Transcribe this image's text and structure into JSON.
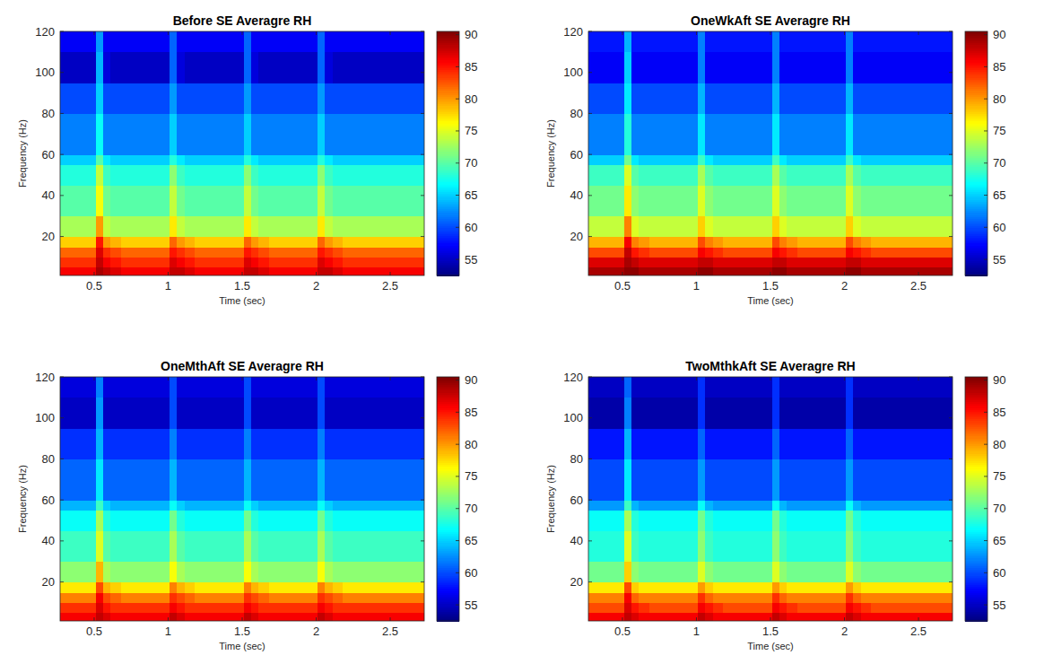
{
  "chart_data": [
    {
      "type": "heatmap",
      "title": "Before SE Averagre RH",
      "x_label": "Time (sec)",
      "y_label": "Frequency (Hz)",
      "xlim": [
        0.27,
        2.73
      ],
      "xticks": [
        0.5,
        1,
        1.5,
        2,
        2.5
      ],
      "ylim": [
        1,
        120
      ],
      "yticks": [
        20,
        40,
        60,
        80,
        100,
        120
      ],
      "x_edges": [
        0.27,
        0.51,
        0.56,
        0.61,
        0.68,
        1.01,
        1.06,
        1.11,
        1.18,
        1.51,
        1.56,
        1.61,
        1.68,
        2.01,
        2.06,
        2.11,
        2.18,
        2.73
      ],
      "y_edges": [
        1,
        5,
        10,
        15,
        20,
        30,
        45,
        55,
        60,
        80,
        95,
        110,
        120
      ],
      "cells": [
        [
          86,
          89,
          88,
          87,
          86,
          88,
          88,
          87,
          86,
          88,
          88,
          87,
          86,
          88,
          88,
          87,
          86
        ],
        [
          84,
          88,
          86,
          85,
          84,
          87,
          86,
          85,
          84,
          87,
          86,
          85,
          84,
          87,
          86,
          85,
          84
        ],
        [
          82,
          87,
          84,
          83,
          82,
          85,
          84,
          83,
          82,
          85,
          84,
          83,
          82,
          85,
          84,
          83,
          82
        ],
        [
          78,
          85,
          80,
          79,
          78,
          82,
          80,
          79,
          78,
          82,
          80,
          79,
          78,
          82,
          80,
          79,
          78
        ],
        [
          73,
          80,
          74,
          73,
          73,
          77,
          74,
          73,
          73,
          77,
          74,
          73,
          73,
          77,
          74,
          73,
          73
        ],
        [
          70,
          76,
          71,
          70,
          70,
          74,
          71,
          70,
          70,
          74,
          71,
          70,
          70,
          74,
          71,
          70,
          70
        ],
        [
          68,
          74,
          69,
          68,
          68,
          72,
          69,
          68,
          68,
          72,
          69,
          68,
          68,
          72,
          69,
          68,
          68
        ],
        [
          65,
          70,
          66,
          65,
          65,
          68,
          66,
          65,
          65,
          68,
          66,
          65,
          65,
          68,
          66,
          65,
          65
        ],
        [
          62,
          67,
          62,
          62,
          62,
          65,
          62,
          62,
          62,
          65,
          62,
          62,
          62,
          65,
          62,
          62,
          62
        ],
        [
          60,
          65,
          60,
          60,
          60,
          63,
          60,
          60,
          60,
          63,
          60,
          60,
          60,
          63,
          60,
          60,
          60
        ],
        [
          55,
          64,
          56,
          55,
          55,
          61,
          56,
          55,
          55,
          61,
          56,
          55,
          55,
          61,
          56,
          55,
          55
        ],
        [
          57,
          63,
          57,
          57,
          57,
          61,
          57,
          57,
          57,
          61,
          57,
          57,
          57,
          61,
          57,
          57,
          57
        ]
      ],
      "clim": [
        52.5,
        90.5
      ],
      "cticks": [
        55,
        60,
        65,
        70,
        75,
        80,
        85,
        90
      ]
    },
    {
      "type": "heatmap",
      "title": "OneWkAft SE Averagre RH",
      "x_label": "Time (sec)",
      "y_label": "Frequency (Hz)",
      "xlim": [
        0.27,
        2.73
      ],
      "xticks": [
        0.5,
        1,
        1.5,
        2,
        2.5
      ],
      "ylim": [
        1,
        120
      ],
      "yticks": [
        20,
        40,
        60,
        80,
        100,
        120
      ],
      "x_edges": [
        0.27,
        0.51,
        0.56,
        0.61,
        0.68,
        1.01,
        1.06,
        1.11,
        1.18,
        1.51,
        1.56,
        1.61,
        1.68,
        2.01,
        2.06,
        2.11,
        2.18,
        2.73
      ],
      "y_edges": [
        1,
        5,
        10,
        15,
        20,
        30,
        45,
        55,
        60,
        80,
        95,
        110,
        120
      ],
      "cells": [
        [
          89,
          90,
          90,
          89,
          89,
          90,
          90,
          89,
          89,
          90,
          90,
          89,
          89,
          90,
          90,
          89,
          89
        ],
        [
          87,
          89,
          88,
          87,
          87,
          88,
          88,
          87,
          87,
          88,
          88,
          87,
          87,
          88,
          88,
          87,
          87
        ],
        [
          83,
          88,
          85,
          84,
          83,
          86,
          85,
          84,
          83,
          86,
          85,
          84,
          83,
          86,
          85,
          84,
          83
        ],
        [
          79,
          86,
          81,
          80,
          79,
          83,
          81,
          80,
          79,
          83,
          81,
          80,
          79,
          83,
          81,
          80,
          79
        ],
        [
          74,
          81,
          75,
          74,
          74,
          78,
          75,
          74,
          74,
          78,
          75,
          74,
          74,
          78,
          75,
          74,
          74
        ],
        [
          71,
          77,
          72,
          71,
          71,
          75,
          72,
          71,
          71,
          75,
          72,
          71,
          71,
          75,
          72,
          71,
          71
        ],
        [
          69,
          75,
          70,
          69,
          69,
          73,
          70,
          69,
          69,
          73,
          70,
          69,
          69,
          73,
          70,
          69,
          69
        ],
        [
          65,
          71,
          66,
          65,
          65,
          69,
          66,
          65,
          65,
          69,
          66,
          65,
          65,
          69,
          66,
          65,
          65
        ],
        [
          62,
          68,
          62,
          62,
          62,
          66,
          62,
          62,
          62,
          66,
          62,
          62,
          62,
          66,
          62,
          62,
          62
        ],
        [
          60,
          66,
          60,
          60,
          60,
          64,
          60,
          60,
          60,
          64,
          60,
          60,
          60,
          64,
          60,
          60,
          60
        ],
        [
          57,
          65,
          57,
          57,
          57,
          62,
          57,
          57,
          57,
          62,
          57,
          57,
          57,
          62,
          57,
          57,
          57
        ],
        [
          58,
          64,
          58,
          58,
          58,
          62,
          58,
          58,
          58,
          62,
          58,
          58,
          58,
          62,
          58,
          58,
          58
        ]
      ],
      "clim": [
        52.5,
        90.5
      ],
      "cticks": [
        55,
        60,
        65,
        70,
        75,
        80,
        85,
        90
      ]
    },
    {
      "type": "heatmap",
      "title": "OneMthAft SE Averagre RH",
      "x_label": "Time (sec)",
      "y_label": "Frequency (Hz)",
      "xlim": [
        0.27,
        2.73
      ],
      "xticks": [
        0.5,
        1,
        1.5,
        2,
        2.5
      ],
      "ylim": [
        1,
        120
      ],
      "yticks": [
        20,
        40,
        60,
        80,
        100,
        120
      ],
      "x_edges": [
        0.27,
        0.51,
        0.56,
        0.61,
        0.68,
        1.01,
        1.06,
        1.11,
        1.18,
        1.51,
        1.56,
        1.61,
        1.68,
        2.01,
        2.06,
        2.11,
        2.18,
        2.73
      ],
      "y_edges": [
        1,
        5,
        10,
        15,
        20,
        30,
        45,
        55,
        60,
        80,
        95,
        110,
        120
      ],
      "cells": [
        [
          86,
          88,
          87,
          86,
          86,
          88,
          87,
          86,
          86,
          88,
          87,
          86,
          86,
          88,
          87,
          86,
          86
        ],
        [
          84,
          87,
          85,
          84,
          84,
          86,
          85,
          84,
          84,
          86,
          85,
          84,
          84,
          86,
          85,
          84,
          84
        ],
        [
          81,
          86,
          83,
          82,
          81,
          84,
          83,
          82,
          81,
          84,
          83,
          82,
          81,
          84,
          83,
          82,
          81
        ],
        [
          77,
          83,
          79,
          78,
          77,
          81,
          79,
          78,
          77,
          81,
          79,
          78,
          77,
          81,
          79,
          78,
          77
        ],
        [
          72,
          79,
          73,
          72,
          72,
          76,
          73,
          72,
          72,
          76,
          73,
          72,
          72,
          76,
          73,
          72,
          72
        ],
        [
          69,
          75,
          70,
          69,
          69,
          73,
          70,
          69,
          69,
          73,
          70,
          69,
          69,
          73,
          70,
          69,
          69
        ],
        [
          67,
          73,
          68,
          67,
          67,
          71,
          68,
          67,
          67,
          71,
          68,
          67,
          67,
          71,
          68,
          67,
          67
        ],
        [
          64,
          69,
          65,
          64,
          64,
          67,
          65,
          64,
          64,
          67,
          65,
          64,
          64,
          67,
          65,
          64,
          64
        ],
        [
          61,
          66,
          61,
          61,
          61,
          64,
          61,
          61,
          61,
          64,
          61,
          61,
          61,
          64,
          61,
          61,
          61
        ],
        [
          59,
          64,
          59,
          59,
          59,
          62,
          59,
          59,
          59,
          62,
          59,
          59,
          59,
          62,
          59,
          59,
          59
        ],
        [
          55,
          63,
          55,
          55,
          55,
          60,
          55,
          55,
          55,
          60,
          55,
          55,
          55,
          60,
          55,
          55,
          55
        ],
        [
          56,
          62,
          56,
          56,
          56,
          60,
          56,
          56,
          56,
          60,
          56,
          56,
          56,
          60,
          56,
          56,
          56
        ]
      ],
      "clim": [
        52.5,
        90.5
      ],
      "cticks": [
        55,
        60,
        65,
        70,
        75,
        80,
        85,
        90
      ]
    },
    {
      "type": "heatmap",
      "title": "TwoMthkAft SE Averagre RH",
      "x_label": "Time (sec)",
      "y_label": "Frequency (Hz)",
      "xlim": [
        0.27,
        2.73
      ],
      "xticks": [
        0.5,
        1,
        1.5,
        2,
        2.5
      ],
      "ylim": [
        1,
        120
      ],
      "yticks": [
        20,
        40,
        60,
        80,
        100,
        120
      ],
      "x_edges": [
        0.27,
        0.51,
        0.56,
        0.61,
        0.68,
        1.01,
        1.06,
        1.11,
        1.18,
        1.51,
        1.56,
        1.61,
        1.68,
        2.01,
        2.06,
        2.11,
        2.18,
        2.73
      ],
      "y_edges": [
        1,
        5,
        10,
        15,
        20,
        30,
        45,
        55,
        60,
        80,
        95,
        110,
        120
      ],
      "cells": [
        [
          86,
          88,
          87,
          86,
          86,
          88,
          87,
          86,
          86,
          88,
          87,
          86,
          86,
          88,
          87,
          86,
          86
        ],
        [
          83,
          87,
          85,
          84,
          83,
          86,
          85,
          84,
          83,
          86,
          85,
          84,
          83,
          86,
          85,
          84,
          83
        ],
        [
          81,
          86,
          82,
          81,
          81,
          84,
          82,
          81,
          81,
          84,
          82,
          81,
          81,
          84,
          82,
          81,
          81
        ],
        [
          77,
          83,
          78,
          77,
          77,
          80,
          78,
          77,
          77,
          80,
          78,
          77,
          77,
          80,
          78,
          77,
          77
        ],
        [
          71,
          78,
          72,
          71,
          71,
          75,
          72,
          71,
          71,
          75,
          72,
          71,
          71,
          75,
          72,
          71,
          71
        ],
        [
          68,
          75,
          69,
          68,
          68,
          72,
          69,
          68,
          68,
          72,
          69,
          68,
          68,
          72,
          69,
          68,
          68
        ],
        [
          67,
          73,
          68,
          67,
          67,
          71,
          68,
          67,
          67,
          71,
          68,
          67,
          67,
          71,
          68,
          67,
          67
        ],
        [
          63,
          69,
          64,
          63,
          63,
          67,
          64,
          63,
          63,
          67,
          64,
          63,
          63,
          67,
          64,
          63,
          63
        ],
        [
          60,
          66,
          60,
          60,
          60,
          63,
          60,
          60,
          60,
          63,
          60,
          60,
          60,
          63,
          60,
          60,
          60
        ],
        [
          58,
          64,
          58,
          58,
          58,
          61,
          58,
          58,
          58,
          61,
          58,
          58,
          58,
          61,
          58,
          58,
          58
        ],
        [
          54,
          62,
          54,
          54,
          54,
          59,
          54,
          54,
          54,
          59,
          54,
          54,
          54,
          59,
          54,
          54,
          54
        ],
        [
          55,
          61,
          55,
          55,
          55,
          59,
          55,
          55,
          55,
          59,
          55,
          55,
          55,
          59,
          55,
          55,
          55
        ]
      ],
      "clim": [
        52.5,
        90.5
      ],
      "cticks": [
        55,
        60,
        65,
        70,
        75,
        80,
        85,
        90
      ]
    }
  ]
}
